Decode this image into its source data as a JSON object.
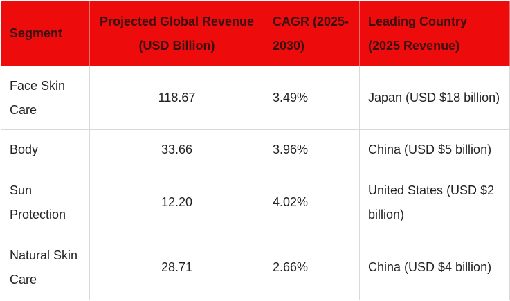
{
  "table": {
    "headers": [
      "Segment",
      "Projected Global Revenue (USD Billion)",
      "CAGR (2025-2030)",
      "Leading Country (2025 Revenue)"
    ],
    "rows": [
      {
        "segment": "Face Skin Care",
        "revenue": "118.67",
        "cagr": "3.49%",
        "country": "Japan (USD $18 billion)"
      },
      {
        "segment": "Body",
        "revenue": "33.66",
        "cagr": "3.96%",
        "country": "China (USD $5 billion)"
      },
      {
        "segment": "Sun Protection",
        "revenue": "12.20",
        "cagr": "4.02%",
        "country": "United States (USD $2 billion)"
      },
      {
        "segment": "Natural Skin Care",
        "revenue": "28.71",
        "cagr": "2.66%",
        "country": "China (USD $4 billion)"
      }
    ]
  },
  "colors": {
    "header_bg": "#ee0b0b",
    "header_text": "#3a1010",
    "border": "#d9d9d9"
  }
}
